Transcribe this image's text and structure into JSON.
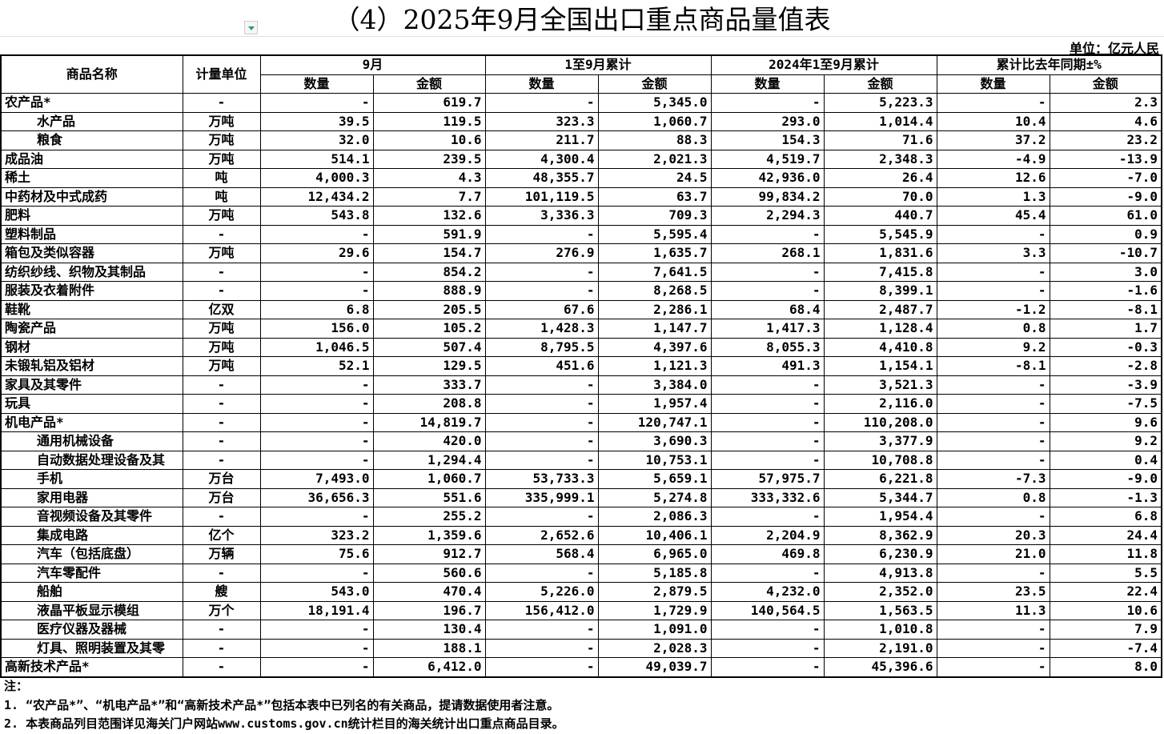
{
  "title": "（4）2025年9月全国出口重点商品量值表",
  "unit_note": "单位：亿元人民",
  "headers": {
    "name": "商品名称",
    "unit": "计量单位",
    "groups": [
      "9月",
      "1至9月累计",
      "2024年1至9月累计",
      "累计比去年同期±%"
    ],
    "qty": "数量",
    "amt": "金额"
  },
  "rows": [
    [
      "农产品*",
      "-",
      "-",
      "619.7",
      "-",
      "5,345.0",
      "-",
      "5,223.3",
      "-",
      "2.3",
      0
    ],
    [
      "水产品",
      "万吨",
      "39.5",
      "119.5",
      "323.3",
      "1,060.7",
      "293.0",
      "1,014.4",
      "10.4",
      "4.6",
      1
    ],
    [
      "粮食",
      "万吨",
      "32.0",
      "10.6",
      "211.7",
      "88.3",
      "154.3",
      "71.6",
      "37.2",
      "23.2",
      1
    ],
    [
      "成品油",
      "万吨",
      "514.1",
      "239.5",
      "4,300.4",
      "2,021.3",
      "4,519.7",
      "2,348.3",
      "-4.9",
      "-13.9",
      0
    ],
    [
      "稀土",
      "吨",
      "4,000.3",
      "4.3",
      "48,355.7",
      "24.5",
      "42,936.0",
      "26.4",
      "12.6",
      "-7.0",
      0
    ],
    [
      "中药材及中式成药",
      "吨",
      "12,434.2",
      "7.7",
      "101,119.5",
      "63.7",
      "99,834.2",
      "70.0",
      "1.3",
      "-9.0",
      0
    ],
    [
      "肥料",
      "万吨",
      "543.8",
      "132.6",
      "3,336.3",
      "709.3",
      "2,294.3",
      "440.7",
      "45.4",
      "61.0",
      0
    ],
    [
      "塑料制品",
      "-",
      "-",
      "591.9",
      "-",
      "5,595.4",
      "-",
      "5,545.9",
      "-",
      "0.9",
      0
    ],
    [
      "箱包及类似容器",
      "万吨",
      "29.6",
      "154.7",
      "276.9",
      "1,635.7",
      "268.1",
      "1,831.6",
      "3.3",
      "-10.7",
      0
    ],
    [
      "纺织纱线、织物及其制品",
      "-",
      "-",
      "854.2",
      "-",
      "7,641.5",
      "-",
      "7,415.8",
      "-",
      "3.0",
      0
    ],
    [
      "服装及衣着附件",
      "-",
      "-",
      "888.9",
      "-",
      "8,268.5",
      "-",
      "8,399.1",
      "-",
      "-1.6",
      0
    ],
    [
      "鞋靴",
      "亿双",
      "6.8",
      "205.5",
      "67.6",
      "2,286.1",
      "68.4",
      "2,487.7",
      "-1.2",
      "-8.1",
      0
    ],
    [
      "陶瓷产品",
      "万吨",
      "156.0",
      "105.2",
      "1,428.3",
      "1,147.7",
      "1,417.3",
      "1,128.4",
      "0.8",
      "1.7",
      0
    ],
    [
      "钢材",
      "万吨",
      "1,046.5",
      "507.4",
      "8,795.5",
      "4,397.6",
      "8,055.3",
      "4,410.8",
      "9.2",
      "-0.3",
      0
    ],
    [
      "未锻轧铝及铝材",
      "万吨",
      "52.1",
      "129.5",
      "451.6",
      "1,121.3",
      "491.3",
      "1,154.1",
      "-8.1",
      "-2.8",
      0
    ],
    [
      "家具及其零件",
      "-",
      "-",
      "333.7",
      "-",
      "3,384.0",
      "-",
      "3,521.3",
      "-",
      "-3.9",
      0
    ],
    [
      "玩具",
      "-",
      "-",
      "208.8",
      "-",
      "1,957.4",
      "-",
      "2,116.0",
      "-",
      "-7.5",
      0
    ],
    [
      "机电产品*",
      "-",
      "-",
      "14,819.7",
      "-",
      "120,747.1",
      "-",
      "110,208.0",
      "-",
      "9.6",
      0
    ],
    [
      "通用机械设备",
      "-",
      "-",
      "420.0",
      "-",
      "3,690.3",
      "-",
      "3,377.9",
      "-",
      "9.2",
      1
    ],
    [
      "自动数据处理设备及其",
      "-",
      "-",
      "1,294.4",
      "-",
      "10,753.1",
      "-",
      "10,708.8",
      "-",
      "0.4",
      1
    ],
    [
      "手机",
      "万台",
      "7,493.0",
      "1,060.7",
      "53,733.3",
      "5,659.1",
      "57,975.7",
      "6,221.8",
      "-7.3",
      "-9.0",
      1
    ],
    [
      "家用电器",
      "万台",
      "36,656.3",
      "551.6",
      "335,999.1",
      "5,274.8",
      "333,332.6",
      "5,344.7",
      "0.8",
      "-1.3",
      1
    ],
    [
      "音视频设备及其零件",
      "-",
      "-",
      "255.2",
      "-",
      "2,086.3",
      "-",
      "1,954.4",
      "-",
      "6.8",
      1
    ],
    [
      "集成电路",
      "亿个",
      "323.2",
      "1,359.6",
      "2,652.6",
      "10,406.1",
      "2,204.9",
      "8,362.9",
      "20.3",
      "24.4",
      1
    ],
    [
      "汽车（包括底盘）",
      "万辆",
      "75.6",
      "912.7",
      "568.4",
      "6,965.0",
      "469.8",
      "6,230.9",
      "21.0",
      "11.8",
      1
    ],
    [
      "汽车零配件",
      "-",
      "-",
      "560.6",
      "-",
      "5,185.8",
      "-",
      "4,913.8",
      "-",
      "5.5",
      1
    ],
    [
      "船舶",
      "艘",
      "543.0",
      "470.4",
      "5,226.0",
      "2,879.5",
      "4,232.0",
      "2,352.0",
      "23.5",
      "22.4",
      1
    ],
    [
      "液晶平板显示模组",
      "万个",
      "18,191.4",
      "196.7",
      "156,412.0",
      "1,729.9",
      "140,564.5",
      "1,563.5",
      "11.3",
      "10.6",
      1
    ],
    [
      "医疗仪器及器械",
      "-",
      "-",
      "130.4",
      "-",
      "1,091.0",
      "-",
      "1,010.8",
      "-",
      "7.9",
      1
    ],
    [
      "灯具、照明装置及其零",
      "-",
      "-",
      "188.1",
      "-",
      "2,028.3",
      "-",
      "2,191.0",
      "-",
      "-7.4",
      1
    ],
    [
      "高新技术产品*",
      "-",
      "-",
      "6,412.0",
      "-",
      "49,039.7",
      "-",
      "45,396.6",
      "-",
      "8.0",
      0
    ]
  ],
  "notes": [
    "注：",
    "1.  “农产品*”、“机电产品*”和“高新技术产品*”包括本表中已列名的有关商品，提请数据使用者注意。",
    "2. 本表商品列目范围详见海关门户网站www.customs.gov.cn统计栏目的海关统计出口重点商品目录。"
  ]
}
